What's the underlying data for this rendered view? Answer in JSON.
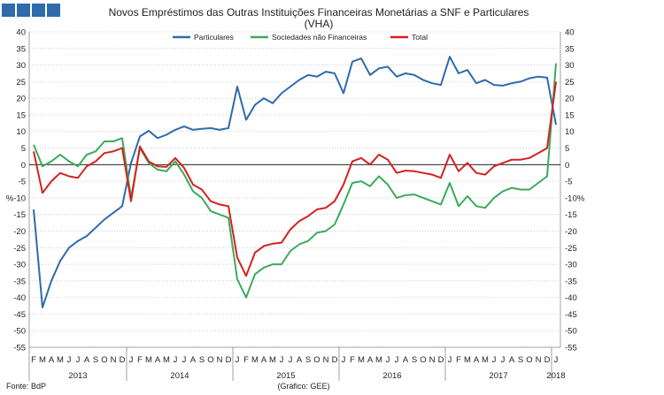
{
  "header_squares": 4,
  "title_line1": "Novos Empréstimos das Outras Instituições Financeiras Monetárias a SNF e Particulares",
  "title_line2": "(VHA)",
  "source": "Fonte: BdP",
  "chart_credit": "(Gráfico: GEE)",
  "colors": {
    "header": "#2F6BAA",
    "particulares": "#2F6BAA",
    "sociedades": "#3BAA5C",
    "total": "#D42020",
    "grid": "#B0B0B0",
    "zero_line": "#000000"
  },
  "chart_data": {
    "type": "line",
    "title": "Novos Empréstimos das Outras Instituições Financeiras Monetárias a SNF e Particulares (VHA)",
    "ylabel_left": "%",
    "ylabel_right": "%",
    "ylim": [
      -55,
      40
    ],
    "yticks": [
      40,
      35,
      30,
      25,
      20,
      15,
      10,
      5,
      0,
      -5,
      -10,
      -15,
      -20,
      -25,
      -30,
      -35,
      -40,
      -45,
      -50,
      -55
    ],
    "right_tick_labels": [
      "40",
      "35",
      "30",
      "25",
      "20",
      "15",
      "10",
      "5",
      "0",
      "-5",
      "-10%",
      "-15",
      "-20",
      "-25",
      "-30",
      "-35",
      "-40",
      "-45",
      "-50",
      "-55"
    ],
    "left_tick_labels": [
      "40",
      "35",
      "30",
      "25",
      "20",
      "15",
      "10",
      "5",
      "0",
      "-5",
      "%-10",
      "-15",
      "-20",
      "-25",
      "-30",
      "-35",
      "-40",
      "-45",
      "-50",
      "-55"
    ],
    "month_labels": [
      "F",
      "M",
      "A",
      "M",
      "J",
      "J",
      "A",
      "S",
      "O",
      "N",
      "D",
      "J",
      "F",
      "M",
      "A",
      "M",
      "J",
      "J",
      "A",
      "S",
      "O",
      "N",
      "D",
      "J",
      "F",
      "M",
      "A",
      "M",
      "J",
      "J",
      "A",
      "S",
      "O",
      "N",
      "D",
      "J",
      "F",
      "M",
      "A",
      "M",
      "J",
      "J",
      "A",
      "S",
      "O",
      "N",
      "D",
      "J",
      "F",
      "M",
      "A",
      "M",
      "J",
      "J",
      "A",
      "S",
      "O",
      "N",
      "D",
      "J"
    ],
    "year_labels": [
      {
        "label": "2013",
        "center_index": 5
      },
      {
        "label": "2014",
        "center_index": 16.5
      },
      {
        "label": "2015",
        "center_index": 28.5
      },
      {
        "label": "2016",
        "center_index": 40.5
      },
      {
        "label": "2017",
        "center_index": 52.5
      },
      {
        "label": "2018",
        "center_index": 59
      }
    ],
    "year_separators_after": [
      10,
      22,
      34,
      46,
      58
    ],
    "series": [
      {
        "name": "Particulares",
        "values": [
          -13.5,
          -43,
          -35,
          -29,
          -25,
          -23,
          -21.5,
          -19,
          -16.5,
          -14.5,
          -12.5,
          0.5,
          8.5,
          10.2,
          8,
          9,
          10.5,
          11.5,
          10.5,
          10.8,
          11,
          10.5,
          11,
          23.5,
          13.5,
          18,
          20,
          18.5,
          21.5,
          23.5,
          25.5,
          27,
          26.5,
          28,
          27.5,
          21.5,
          31,
          32,
          27,
          29,
          29.5,
          26.5,
          27.5,
          27,
          25.5,
          24.5,
          24,
          32.5,
          27.5,
          28.5,
          24.5,
          25.5,
          24,
          23.8,
          24.5,
          25,
          26,
          26.5,
          26.2,
          12
        ]
      },
      {
        "name": "Sociedades não Financeiras",
        "values": [
          6,
          -0.5,
          1,
          3,
          1,
          -0.5,
          3,
          4,
          7,
          7,
          8,
          -10,
          5,
          0.5,
          -1.5,
          -2,
          1,
          -3,
          -8,
          -10,
          -14,
          -15,
          -16,
          -34.5,
          -40,
          -33,
          -31,
          -30,
          -30,
          -26,
          -24,
          -23,
          -20.5,
          -20,
          -18,
          -12,
          -5.5,
          -5,
          -6.5,
          -3.5,
          -6,
          -10,
          -9.2,
          -9,
          -10,
          -11,
          -12,
          -5.5,
          -12.5,
          -9.5,
          -12.5,
          -13,
          -10,
          -8,
          -7,
          -7.5,
          -7.5,
          -5.5,
          -3.5,
          30.5
        ]
      },
      {
        "name": "Total",
        "values": [
          4,
          -8.5,
          -5,
          -2.5,
          -3.5,
          -4,
          -0.5,
          1,
          3.5,
          4,
          5,
          -11,
          5.5,
          1,
          -0.5,
          -0.7,
          2,
          -1,
          -6,
          -7.5,
          -11,
          -12,
          -12.5,
          -28,
          -33.5,
          -26.5,
          -24.5,
          -23.8,
          -23.5,
          -19.5,
          -17,
          -15.5,
          -13.5,
          -13,
          -11,
          -6,
          1,
          2,
          0,
          3,
          1.5,
          -2.5,
          -1.8,
          -2,
          -2.5,
          -3,
          -4,
          3,
          -2,
          0.5,
          -2.5,
          -3,
          -0.5,
          0.5,
          1.5,
          1.5,
          2,
          3.5,
          5,
          25
        ]
      }
    ]
  }
}
